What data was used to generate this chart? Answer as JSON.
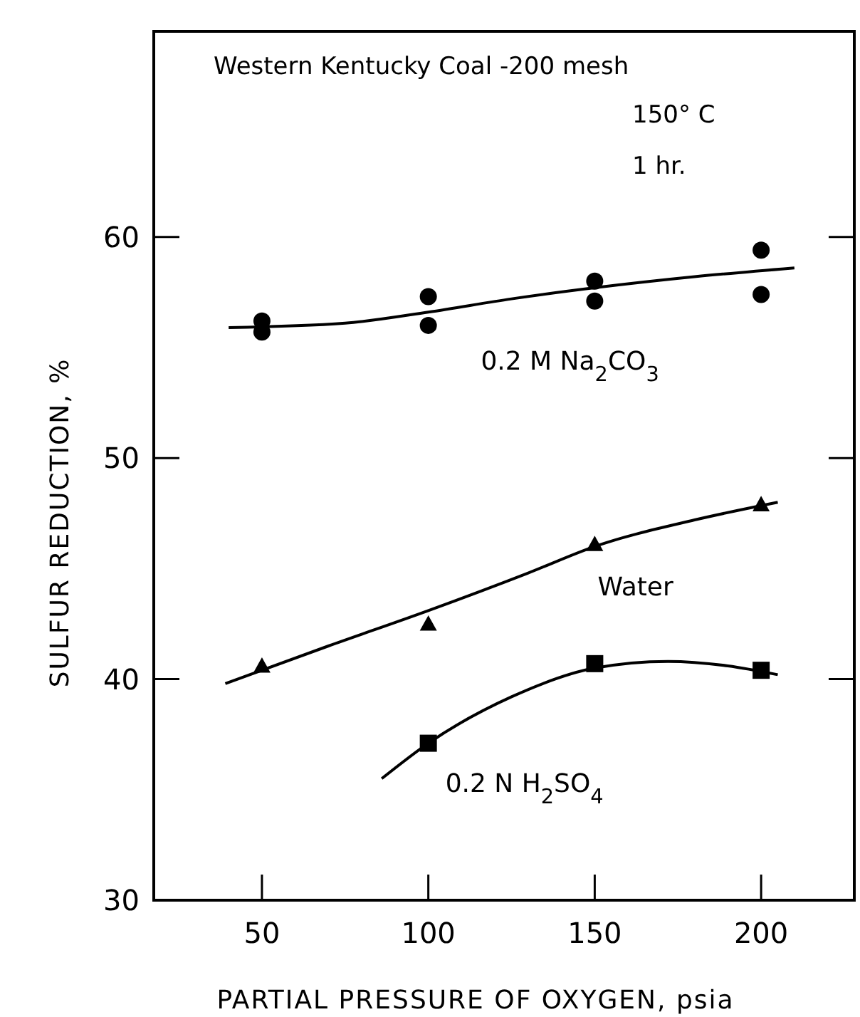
{
  "chart_data": {
    "type": "scatter",
    "xlabel": "PARTIAL PRESSURE OF OXYGEN, psia",
    "ylabel": "SULFUR REDUCTION, %",
    "annotations": [
      "Western Kentucky Coal -200 mesh",
      "150° C",
      "1 hr."
    ],
    "xlim": [
      17.5,
      228
    ],
    "xticks": [
      50,
      100,
      150,
      200
    ],
    "ylim": [
      30,
      69.3
    ],
    "yticks": [
      30,
      40,
      50,
      60
    ],
    "grid": false,
    "series": [
      {
        "name": "0.2 M Na$_{2}$CO$_{3}$",
        "marker": "circle",
        "color": "#000000",
        "x": [
          50,
          50,
          100,
          100,
          150,
          150,
          200,
          200
        ],
        "values": [
          56.2,
          55.7,
          57.3,
          56.0,
          58.0,
          57.1,
          59.4,
          57.4
        ]
      },
      {
        "name": "Water",
        "marker": "triangle",
        "color": "#000000",
        "x": [
          50,
          100,
          150,
          200
        ],
        "values": [
          40.6,
          42.5,
          46.1,
          47.9
        ]
      },
      {
        "name": "0.2 N H$_{2}$SO$_{4}$",
        "marker": "square",
        "color": "#000000",
        "x": [
          100,
          150,
          200
        ],
        "values": [
          37.1,
          40.7,
          40.4
        ]
      },
      {
        "type": "line",
        "marker": "none",
        "line_style": "solid",
        "color": "#000000",
        "x": [
          40,
          75,
          100,
          125,
          150,
          180,
          210
        ],
        "values": [
          55.9,
          56.1,
          56.6,
          57.2,
          57.7,
          58.2,
          58.6
        ]
      },
      {
        "type": "line",
        "marker": "none",
        "line_style": "solid",
        "color": "#000000",
        "x": [
          39,
          70,
          100,
          130,
          150,
          180,
          205
        ],
        "values": [
          39.8,
          41.5,
          43.1,
          44.8,
          46.0,
          47.2,
          48.0
        ]
      },
      {
        "type": "line",
        "marker": "none",
        "line_style": "solid",
        "color": "#000000",
        "x": [
          86,
          100,
          125,
          150,
          172,
          190,
          205
        ],
        "values": [
          35.5,
          37.1,
          39.2,
          40.5,
          40.8,
          40.6,
          40.2
        ]
      }
    ]
  }
}
